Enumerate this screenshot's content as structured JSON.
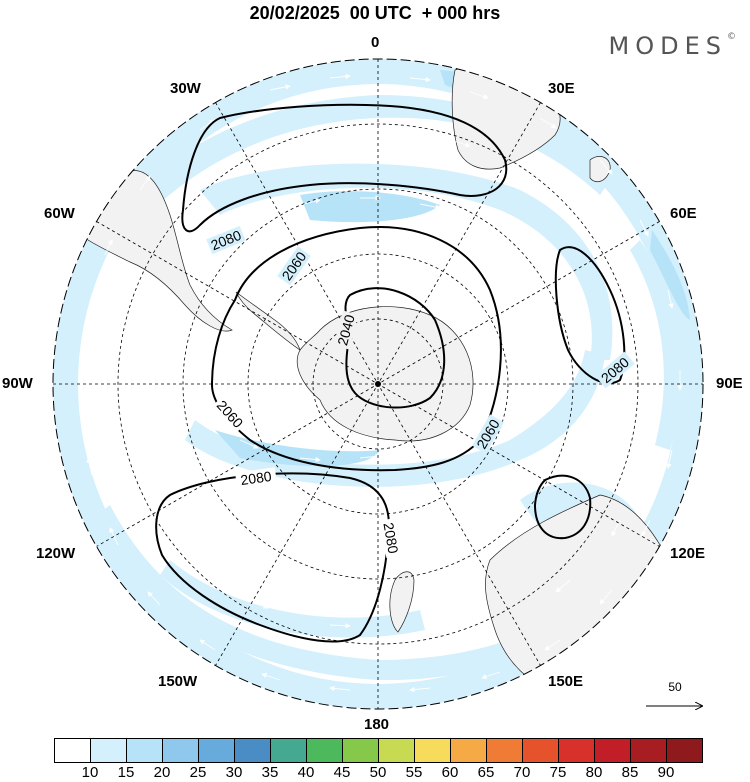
{
  "title": "20/02/2025  00 UTC  + 000 hrs",
  "brand": "MODES",
  "brand_mark": "©",
  "longitude_labels": [
    {
      "id": "lon-0",
      "text": "0"
    },
    {
      "id": "lon-30e",
      "text": "30E"
    },
    {
      "id": "lon-60e",
      "text": "60E"
    },
    {
      "id": "lon-90e",
      "text": "90E"
    },
    {
      "id": "lon-120e",
      "text": "120E"
    },
    {
      "id": "lon-150e",
      "text": "150E"
    },
    {
      "id": "lon-180",
      "text": "180"
    },
    {
      "id": "lon-150w",
      "text": "150W"
    },
    {
      "id": "lon-120w",
      "text": "120W"
    },
    {
      "id": "lon-90w",
      "text": "90W"
    },
    {
      "id": "lon-60w",
      "text": "60W"
    },
    {
      "id": "lon-30w",
      "text": "30W"
    }
  ],
  "contour_labels": [
    "2080",
    "2060",
    "2040",
    "2060",
    "2060",
    "2080",
    "2080",
    "2080"
  ],
  "reference_vector": "50",
  "colorbar": {
    "labels": [
      "10",
      "15",
      "20",
      "25",
      "30",
      "35",
      "40",
      "45",
      "50",
      "55",
      "60",
      "65",
      "70",
      "75",
      "80",
      "85",
      "90"
    ],
    "colors": [
      "#ffffff",
      "#d4f0fc",
      "#b6e3f8",
      "#8ec8ec",
      "#67aadc",
      "#4a8cc4",
      "#45a890",
      "#4cba5c",
      "#86c94a",
      "#c8da52",
      "#f7dc5c",
      "#f5aa45",
      "#ef7b34",
      "#e5522c",
      "#d8302a",
      "#c21e27",
      "#a81d22",
      "#8e1a1e"
    ]
  },
  "colors": {
    "land": "#f2f2f2",
    "ocean": "#ffffff",
    "wind_light": "#d4f0fc",
    "wind_medium": "#b6e3f8",
    "contour": "#000000"
  }
}
